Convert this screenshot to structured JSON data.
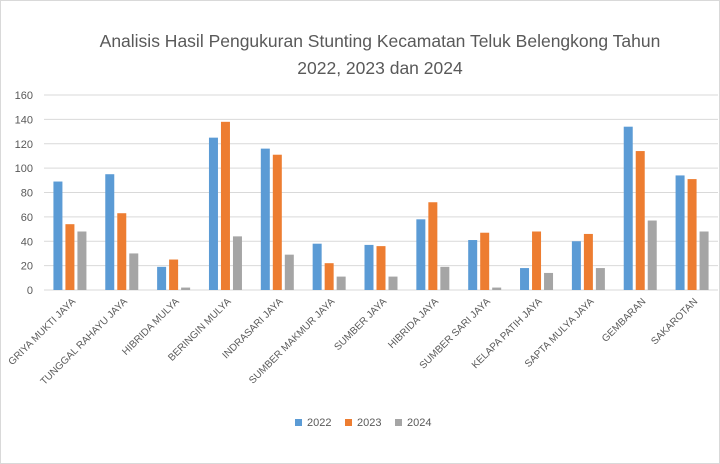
{
  "chart_data": {
    "type": "bar",
    "title_lines": [
      "Analisis Hasil Pengukuran Stunting Kecamatan Teluk Belengkong Tahun",
      "2022, 2023 dan 2024"
    ],
    "xlabel": "",
    "ylabel": "",
    "ylim": [
      0,
      160
    ],
    "yticks": [
      0,
      20,
      40,
      60,
      80,
      100,
      120,
      140,
      160
    ],
    "grid": true,
    "legend_position": "bottom",
    "categories": [
      "GRIYA MUKTI JAYA",
      "TUNGGAL RAHAYU JAYA",
      "HIBRIDA MULYA",
      "BERINGIN MULYA",
      "INDRASARI JAYA",
      "SUMBER MAKMUR JAYA",
      "SUMBER JAYA",
      "HIBRIDA JAYA",
      "SUMBER SARI JAYA",
      "KELAPA PATIH JAYA",
      "SAPTA MULYA JAYA",
      "GEMBARAN",
      "SAKAROTAN"
    ],
    "series": [
      {
        "name": "2022",
        "color": "#5b9bd5",
        "values": [
          89,
          95,
          19,
          125,
          116,
          38,
          37,
          58,
          41,
          18,
          40,
          134,
          94
        ]
      },
      {
        "name": "2023",
        "color": "#ed7d31",
        "values": [
          54,
          63,
          25,
          138,
          111,
          22,
          36,
          72,
          47,
          48,
          46,
          114,
          91
        ]
      },
      {
        "name": "2024",
        "color": "#a5a5a5",
        "values": [
          48,
          30,
          2,
          44,
          29,
          11,
          11,
          19,
          2,
          14,
          18,
          57,
          48
        ]
      }
    ]
  }
}
